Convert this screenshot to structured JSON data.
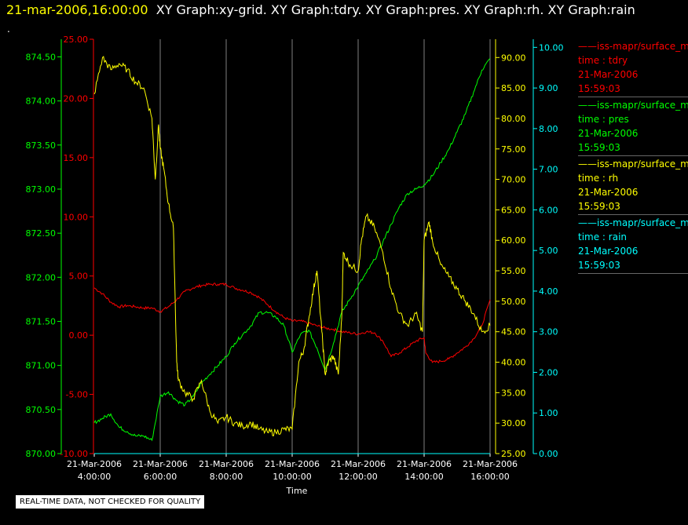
{
  "header": {
    "timestamp": "21-mar-2006,16:00:00",
    "titles": "XY Graph:xy-grid.  XY Graph:tdry.  XY Graph:pres.  XY Graph:rh.  XY Graph:rain",
    "dot": "."
  },
  "notice": "REAL-TIME DATA, NOT CHECKED FOR QUALITY",
  "colors": {
    "tdry": "#ff0000",
    "pres": "#00ff00",
    "rh": "#ffff00",
    "rain": "#00ffff",
    "grid": "#808080"
  },
  "legend": [
    {
      "name": "——iss-mapr/surface_m",
      "field": "time : tdry",
      "date": "21-Mar-2006",
      "time": "15:59:03",
      "color": "#ff0000"
    },
    {
      "name": "——iss-mapr/surface_m",
      "field": "time : pres",
      "date": "21-Mar-2006",
      "time": "15:59:03",
      "color": "#00ff00"
    },
    {
      "name": "——iss-mapr/surface_m",
      "field": "time : rh",
      "date": "21-Mar-2006",
      "time": "15:59:03",
      "color": "#ffff00"
    },
    {
      "name": "——iss-mapr/surface_m",
      "field": "time : rain",
      "date": "21-Mar-2006",
      "time": "15:59:03",
      "color": "#00ffff"
    }
  ],
  "chart_data": {
    "type": "line",
    "xlabel": "Time",
    "x_range": [
      "2006-03-21T04:00",
      "2006-03-21T16:00"
    ],
    "x_ticks": [
      {
        "date": "21-Mar-2006",
        "time": "4:00:00"
      },
      {
        "date": "21-Mar-2006",
        "time": "6:00:00"
      },
      {
        "date": "21-Mar-2006",
        "time": "8:00:00"
      },
      {
        "date": "21-Mar-2006",
        "time": "10:00:00"
      },
      {
        "date": "21-Mar-2006",
        "time": "12:00:00"
      },
      {
        "date": "21-Mar-2006",
        "time": "14:00:00"
      },
      {
        "date": "21-Mar-2006",
        "time": "16:00:00"
      }
    ],
    "grid": "vertical",
    "axes": {
      "tdry": {
        "side": "left-outer",
        "color": "#ff0000",
        "range": [
          -10,
          25
        ],
        "ticks": [
          "-10.00",
          "-5.00",
          "0.00",
          "5.00",
          "10.00",
          "15.00",
          "20.00",
          "25.00"
        ]
      },
      "pres": {
        "side": "left-inner",
        "color": "#00ff00",
        "range": [
          870,
          874.7
        ],
        "ticks": [
          "870.00",
          "870.50",
          "871.00",
          "871.50",
          "872.00",
          "872.50",
          "873.00",
          "873.50",
          "874.00",
          "874.50"
        ]
      },
      "rh": {
        "side": "right-inner",
        "color": "#ffff00",
        "range": [
          25,
          93
        ],
        "ticks": [
          "25.00",
          "30.00",
          "35.00",
          "40.00",
          "45.00",
          "50.00",
          "55.00",
          "60.00",
          "65.00",
          "70.00",
          "75.00",
          "80.00",
          "85.00",
          "90.00"
        ]
      },
      "rain": {
        "side": "right-outer",
        "color": "#00ffff",
        "range": [
          0,
          10.2
        ],
        "ticks": [
          "0.00",
          "1.00",
          "2.00",
          "3.00",
          "4.00",
          "5.00",
          "6.00",
          "7.00",
          "8.00",
          "9.00",
          "10.00"
        ]
      }
    },
    "series": [
      {
        "axis": "tdry",
        "x": [
          4.0,
          4.25,
          4.5,
          4.75,
          5.0,
          5.25,
          5.5,
          5.75,
          6.0,
          6.25,
          6.5,
          6.75,
          7.0,
          7.25,
          7.5,
          7.75,
          8.0,
          8.25,
          8.5,
          8.75,
          9.0,
          9.25,
          9.5,
          9.75,
          10.0,
          10.25,
          10.5,
          10.75,
          11.0,
          11.25,
          11.5,
          11.75,
          12.0,
          12.25,
          12.5,
          12.75,
          13.0,
          13.25,
          13.5,
          13.75,
          14.0,
          14.05,
          14.25,
          14.5,
          14.75,
          15.0,
          15.25,
          15.5,
          15.75,
          16.0
        ],
        "y": [
          4.0,
          3.5,
          2.8,
          2.4,
          2.5,
          2.4,
          2.3,
          2.3,
          2.0,
          2.4,
          3.0,
          3.7,
          4.0,
          4.2,
          4.3,
          4.3,
          4.3,
          4.0,
          3.8,
          3.6,
          3.2,
          2.6,
          2.0,
          1.5,
          1.2,
          1.2,
          1.0,
          0.8,
          0.6,
          0.5,
          0.3,
          0.2,
          0.1,
          0.3,
          0.2,
          -0.5,
          -1.8,
          -1.5,
          -1.0,
          -0.5,
          -0.2,
          -1.5,
          -2.3,
          -2.2,
          -2.0,
          -1.5,
          -1.0,
          -0.3,
          0.8,
          3.0
        ]
      },
      {
        "axis": "pres",
        "x": [
          4.0,
          4.25,
          4.5,
          4.75,
          5.0,
          5.25,
          5.5,
          5.75,
          6.0,
          6.25,
          6.5,
          6.75,
          7.0,
          7.25,
          7.5,
          7.75,
          8.0,
          8.25,
          8.5,
          8.75,
          9.0,
          9.25,
          9.5,
          9.75,
          10.0,
          10.25,
          10.5,
          10.75,
          11.0,
          11.25,
          11.5,
          11.75,
          12.0,
          12.25,
          12.5,
          12.75,
          13.0,
          13.25,
          13.5,
          13.75,
          14.0,
          14.25,
          14.5,
          14.75,
          15.0,
          15.25,
          15.5,
          15.75,
          16.0
        ],
        "y": [
          870.35,
          870.4,
          870.45,
          870.3,
          870.25,
          870.2,
          870.2,
          870.15,
          870.65,
          870.7,
          870.6,
          870.55,
          870.65,
          870.8,
          870.9,
          871.0,
          871.1,
          871.25,
          871.35,
          871.45,
          871.6,
          871.6,
          871.55,
          871.45,
          871.15,
          871.35,
          871.4,
          871.2,
          870.95,
          871.25,
          871.6,
          871.75,
          871.9,
          872.05,
          872.2,
          872.4,
          872.6,
          872.8,
          872.95,
          873.0,
          873.05,
          873.15,
          873.3,
          873.45,
          873.65,
          873.85,
          874.1,
          874.35,
          874.48
        ]
      },
      {
        "axis": "rh",
        "x": [
          4.0,
          4.25,
          4.5,
          4.75,
          5.0,
          5.25,
          5.5,
          5.75,
          5.85,
          5.95,
          6.0,
          6.1,
          6.25,
          6.4,
          6.5,
          6.55,
          6.75,
          7.0,
          7.25,
          7.5,
          7.75,
          8.0,
          8.25,
          8.5,
          8.75,
          9.0,
          9.25,
          9.5,
          9.75,
          10.0,
          10.2,
          10.35,
          10.5,
          10.65,
          10.75,
          10.9,
          11.0,
          11.1,
          11.25,
          11.4,
          11.5,
          11.55,
          11.75,
          12.0,
          12.1,
          12.25,
          12.5,
          12.75,
          13.0,
          13.25,
          13.5,
          13.75,
          13.95,
          14.0,
          14.15,
          14.25,
          14.5,
          14.75,
          15.0,
          15.25,
          15.5,
          15.75,
          16.0
        ],
        "y": [
          84,
          90,
          88,
          89,
          88,
          86,
          85,
          80,
          70,
          79,
          75,
          72,
          66,
          62,
          40,
          37,
          35,
          34,
          37,
          32,
          30,
          31,
          30,
          29.5,
          30,
          29,
          28.5,
          28.5,
          29,
          29,
          40,
          42,
          47,
          52,
          55,
          45,
          38,
          40,
          41,
          38,
          47,
          58,
          56,
          55,
          60,
          64,
          62,
          58,
          52,
          48,
          46,
          48,
          45,
          60,
          63,
          60,
          56,
          54,
          52,
          50,
          48,
          45,
          46
        ]
      },
      {
        "axis": "rain",
        "x": [
          4.0,
          16.0
        ],
        "y": [
          0.0,
          0.0
        ]
      }
    ]
  }
}
